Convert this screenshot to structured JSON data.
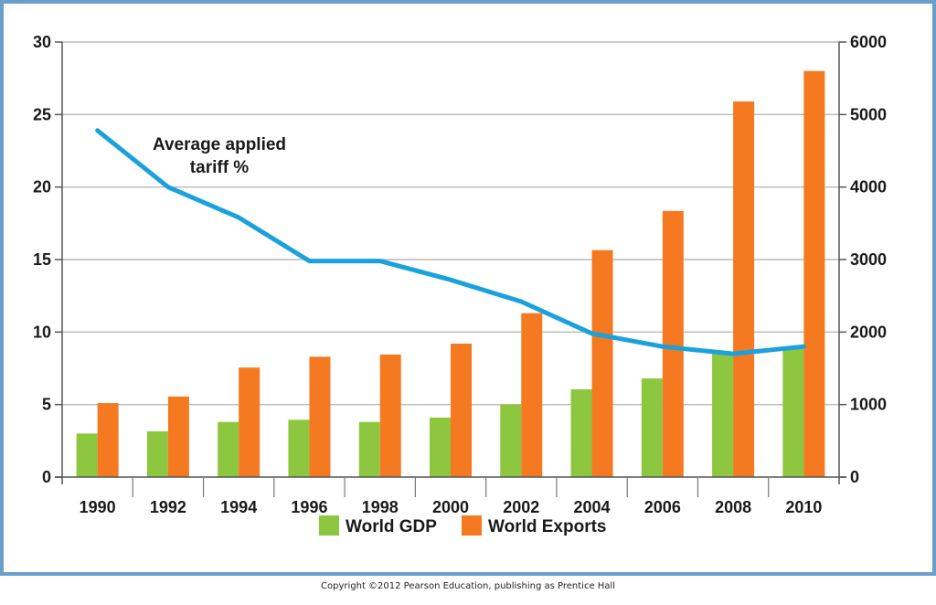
{
  "chart_data": {
    "type": "bar",
    "categories": [
      "1990",
      "1992",
      "1994",
      "1996",
      "1998",
      "2000",
      "2002",
      "2004",
      "2006",
      "2008",
      "2010"
    ],
    "series": [
      {
        "name": "World GDP",
        "axis": "left",
        "color": "#8dc63f",
        "values": [
          3.0,
          3.15,
          3.8,
          3.95,
          3.8,
          4.1,
          5.0,
          6.05,
          6.8,
          8.6,
          9.0
        ]
      },
      {
        "name": "World Exports",
        "axis": "right",
        "color": "#f47920",
        "values": [
          1020,
          1110,
          1510,
          1660,
          1690,
          1840,
          2260,
          3130,
          3670,
          5180,
          5600
        ]
      },
      {
        "name": "Average applied tariff %",
        "type": "line",
        "axis": "left",
        "color": "#1ba1dc",
        "values": [
          23.9,
          20.0,
          17.9,
          14.9,
          14.9,
          13.6,
          12.1,
          9.9,
          9.0,
          8.5,
          9.0
        ]
      }
    ],
    "y_left": {
      "lim": [
        0,
        30
      ],
      "ticks": [
        "0",
        "5",
        "10",
        "15",
        "20",
        "25",
        "30"
      ]
    },
    "y_right": {
      "lim": [
        0,
        6000
      ],
      "ticks": [
        "0",
        "1000",
        "2000",
        "3000",
        "4000",
        "5000",
        "6000"
      ]
    },
    "annotation": [
      "Average applied",
      "tariff %"
    ],
    "legend": [
      "World GDP",
      "World Exports"
    ],
    "legend_position": "bottom",
    "grid": true
  },
  "copyright": "Copyright ©2012 Pearson Education, publishing as Prentice Hall"
}
